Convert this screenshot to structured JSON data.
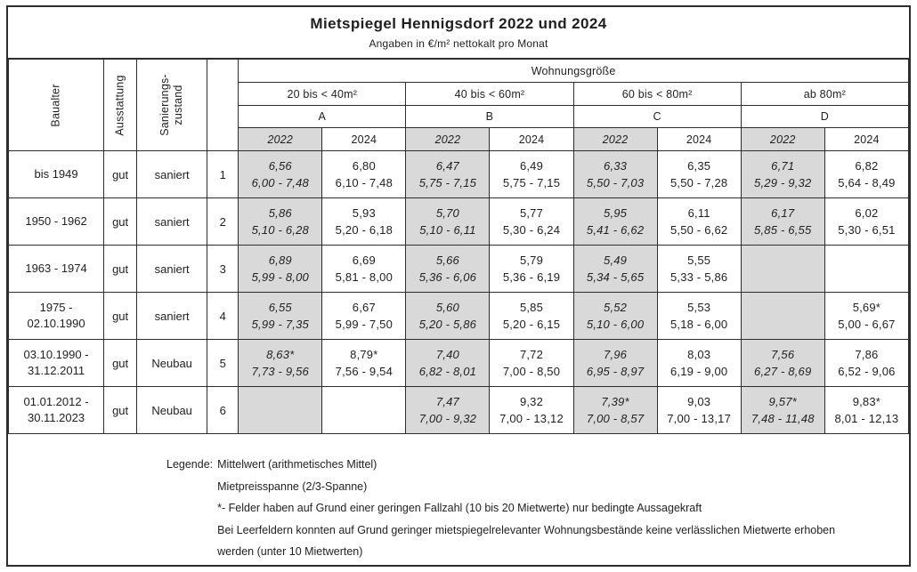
{
  "title": "Mietspiegel Hennigsdorf 2022 und 2024",
  "subtitle": "Angaben in €/m² nettokalt pro Monat",
  "colors": {
    "shaded_cell": "#d9d9d9",
    "border": "#2d2d2d",
    "text": "#1f1f1f"
  },
  "header": {
    "baualter": "Baualter",
    "ausstattung": "Ausstattung",
    "sanierung_line1": "Sanierungs-",
    "sanierung_line2": "zustand",
    "wohnungsgroesse": "Wohnungsgröße",
    "size_groups": [
      {
        "range": "20 bis < 40m²",
        "letter": "A"
      },
      {
        "range": "40 bis < 60m²",
        "letter": "B"
      },
      {
        "range": "60 bis < 80m²",
        "letter": "C"
      },
      {
        "range": "ab 80m²",
        "letter": "D"
      }
    ],
    "year_2022": "2022",
    "year_2024": "2024"
  },
  "rows": [
    {
      "baualter": [
        "bis 1949"
      ],
      "ausstattung": "gut",
      "zustand": "saniert",
      "nr": "1",
      "cells": [
        {
          "mean": "6,56",
          "range": "6,00 - 7,48"
        },
        {
          "mean": "6,80",
          "range": "6,10 - 7,48"
        },
        {
          "mean": "6,47",
          "range": "5,75 - 7,15"
        },
        {
          "mean": "6,49",
          "range": "5,75 - 7,15"
        },
        {
          "mean": "6,33",
          "range": "5,50 - 7,03"
        },
        {
          "mean": "6,35",
          "range": "5,50 - 7,28"
        },
        {
          "mean": "6,71",
          "range": "5,29 - 9,32"
        },
        {
          "mean": "6,82",
          "range": "5,64 - 8,49"
        }
      ]
    },
    {
      "baualter": [
        "1950 - 1962"
      ],
      "ausstattung": "gut",
      "zustand": "saniert",
      "nr": "2",
      "cells": [
        {
          "mean": "5,86",
          "range": "5,10 - 6,28"
        },
        {
          "mean": "5,93",
          "range": "5,20 - 6,18"
        },
        {
          "mean": "5,70",
          "range": "5,10 - 6,11"
        },
        {
          "mean": "5,77",
          "range": "5,30 - 6,24"
        },
        {
          "mean": "5,95",
          "range": "5,41 - 6,62"
        },
        {
          "mean": "6,11",
          "range": "5,50 - 6,62"
        },
        {
          "mean": "6,17",
          "range": "5,85 - 6,55"
        },
        {
          "mean": "6,02",
          "range": "5,30 - 6,51"
        }
      ]
    },
    {
      "baualter": [
        "1963 - 1974"
      ],
      "ausstattung": "gut",
      "zustand": "saniert",
      "nr": "3",
      "cells": [
        {
          "mean": "6,89",
          "range": "5,99 - 8,00"
        },
        {
          "mean": "6,69",
          "range": "5,81 - 8,00"
        },
        {
          "mean": "5,66",
          "range": "5,36 - 6,06"
        },
        {
          "mean": "5,79",
          "range": "5,36 - 6,19"
        },
        {
          "mean": "5,49",
          "range": "5,34 - 5,65"
        },
        {
          "mean": "5,55",
          "range": "5,33 - 5,86"
        },
        {
          "mean": "",
          "range": ""
        },
        {
          "mean": "",
          "range": ""
        }
      ]
    },
    {
      "baualter": [
        "1975 -",
        "02.10.1990"
      ],
      "ausstattung": "gut",
      "zustand": "saniert",
      "nr": "4",
      "cells": [
        {
          "mean": "6,55",
          "range": "5,99 - 7,35"
        },
        {
          "mean": "6,67",
          "range": "5,99 - 7,50"
        },
        {
          "mean": "5,60",
          "range": "5,20 - 5,86"
        },
        {
          "mean": "5,85",
          "range": "5,20 - 6,15"
        },
        {
          "mean": "5,52",
          "range": "5,10 - 6,00"
        },
        {
          "mean": "5,53",
          "range": "5,18 - 6,00"
        },
        {
          "mean": "",
          "range": ""
        },
        {
          "mean": "5,69*",
          "range": "5,00 - 6,67"
        }
      ]
    },
    {
      "baualter": [
        "03.10.1990 -",
        "31.12.2011"
      ],
      "ausstattung": "gut",
      "zustand": "Neubau",
      "nr": "5",
      "cells": [
        {
          "mean": "8,63*",
          "range": "7,73 - 9,56"
        },
        {
          "mean": "8,79*",
          "range": "7,56 - 9,54"
        },
        {
          "mean": "7,40",
          "range": "6,82 - 8,01"
        },
        {
          "mean": "7,72",
          "range": "7,00 - 8,50"
        },
        {
          "mean": "7,96",
          "range": "6,95 - 8,97"
        },
        {
          "mean": "8,03",
          "range": "6,19 - 9,00"
        },
        {
          "mean": "7,56",
          "range": "6,27 - 8,69"
        },
        {
          "mean": "7,86",
          "range": "6,52 - 9,06"
        }
      ]
    },
    {
      "baualter": [
        "01.01.2012 -",
        "30.11.2023"
      ],
      "ausstattung": "gut",
      "zustand": "Neubau",
      "nr": "6",
      "cells": [
        {
          "mean": "",
          "range": ""
        },
        {
          "mean": "",
          "range": ""
        },
        {
          "mean": "7,47",
          "range": "7,00 - 9,32"
        },
        {
          "mean": "9,32",
          "range": "7,00 - 13,12"
        },
        {
          "mean": "7,39*",
          "range": "7,00 - 8,57"
        },
        {
          "mean": "9,03",
          "range": "7,00 - 13,17"
        },
        {
          "mean": "9,57*",
          "range": "7,48 - 11,48"
        },
        {
          "mean": "9,83*",
          "range": "8,01 - 12,13"
        }
      ]
    }
  ],
  "legend": {
    "label": "Legende:",
    "lines": [
      "Mittelwert (arithmetisches Mittel)",
      "Mietpreisspanne (2/3-Spanne)",
      "*- Felder haben auf Grund einer geringen Fallzahl (10 bis 20 Mietwerte) nur bedingte Aussagekraft",
      "Bei Leerfeldern konnten auf Grund geringer mietspiegelrelevanter Wohnungsbestände keine verlässlichen Mietwerte erhoben",
      "werden (unter 10 Mietwerten)"
    ]
  }
}
